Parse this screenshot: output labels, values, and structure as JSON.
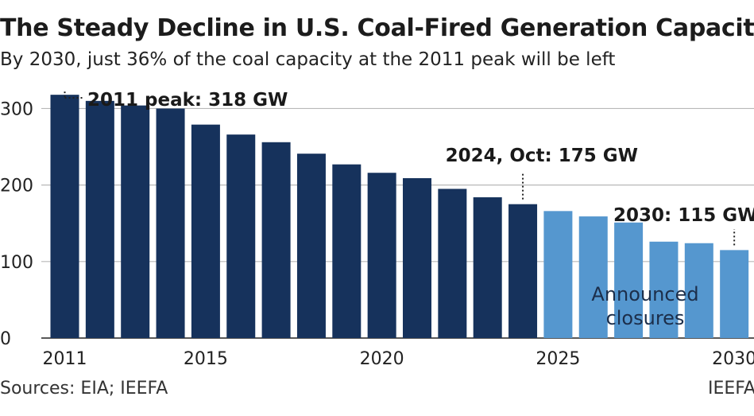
{
  "title": "The Steady Decline in U.S. Coal-Fired Generation Capacity",
  "subtitle": "By 2030, just 36% of the coal capacity at the 2011 peak will be left",
  "source": "Sources: EIA; IEEFA",
  "credit": "IEEFA",
  "colors": {
    "historical": "#16325c",
    "announced": "#5597cf",
    "grid": "#b8b8b8",
    "axis": "#222222"
  },
  "chart_data": {
    "type": "bar",
    "title": "The Steady Decline in U.S. Coal-Fired Generation Capacity",
    "subtitle": "By 2030, just 36% of the coal capacity at the 2011 peak will be left",
    "categories": [
      "2011",
      "2012",
      "2013",
      "2014",
      "2015",
      "2016",
      "2017",
      "2018",
      "2019",
      "2020",
      "2021",
      "2022",
      "2023",
      "2024",
      "2025",
      "2026",
      "2027",
      "2028",
      "2029",
      "2030"
    ],
    "series": [
      {
        "values": [
          318,
          310,
          304,
          300,
          279,
          266,
          256,
          241,
          227,
          216,
          209,
          195,
          184,
          175,
          null,
          null,
          null,
          null,
          null,
          null
        ]
      },
      {
        "name": "Announced closures",
        "values": [
          null,
          null,
          null,
          null,
          null,
          null,
          null,
          null,
          null,
          null,
          null,
          null,
          null,
          null,
          166,
          159,
          151,
          126,
          124,
          115
        ]
      }
    ],
    "ylim": [
      0,
      330
    ],
    "yticks": [
      0,
      100,
      200,
      300
    ],
    "ytick_labels": [
      "0",
      "100",
      "200",
      "300"
    ],
    "xtick_labels": [
      "2011",
      "2015",
      "2020",
      "2025",
      "2030"
    ],
    "grid": true,
    "annotations": [
      {
        "text": "2011 peak: 318 GW",
        "category": "2011"
      },
      {
        "text": "2024, Oct: 175 GW",
        "category": "2024"
      },
      {
        "text": "2030: 115 GW",
        "category": "2030"
      },
      {
        "text": "Announced\nclosures",
        "category": "2027"
      }
    ]
  }
}
